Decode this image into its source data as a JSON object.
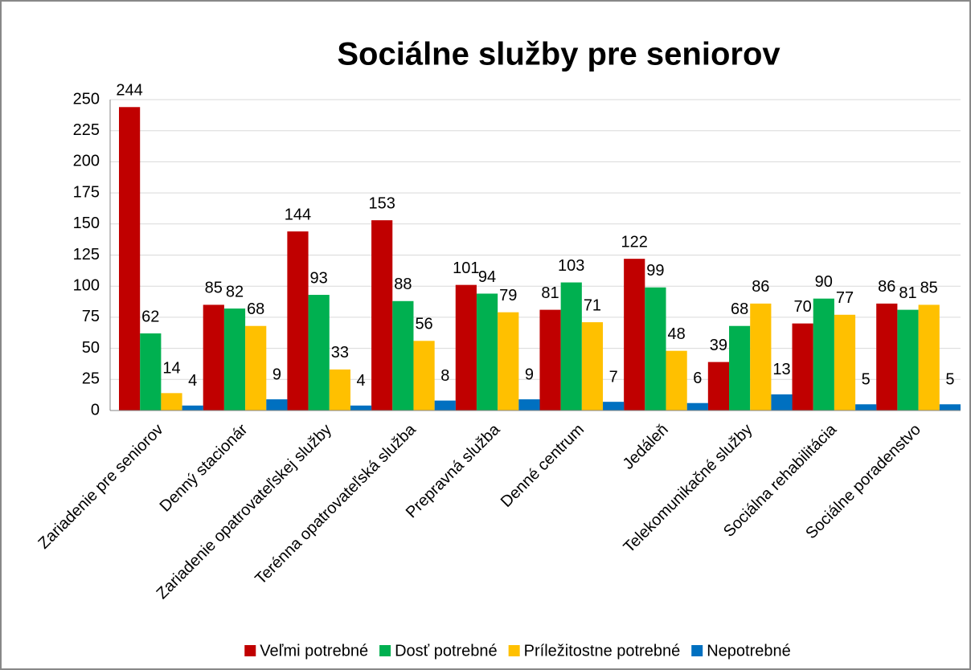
{
  "chart_data": {
    "type": "bar",
    "title": "Sociálne služby pre seniorov",
    "categories": [
      "Zariadenie pre seniorov",
      "Denný stacionár",
      "Zariadenie opatrovateľskej služby",
      "Terénna opatrovateľská služba",
      "Prepravná služba",
      "Denné centrum",
      "Jedáleň",
      "Telekomunikačné služby",
      "Sociálna rehabilitácia",
      "Sociálne poradenstvo"
    ],
    "series": [
      {
        "name": "Veľmi potrebné",
        "color": "#c00000",
        "values": [
          244,
          85,
          144,
          153,
          101,
          81,
          122,
          39,
          70,
          86
        ]
      },
      {
        "name": "Dosť potrebné",
        "color": "#00b050",
        "values": [
          62,
          82,
          93,
          88,
          94,
          103,
          99,
          68,
          90,
          81
        ]
      },
      {
        "name": "Príležitostne potrebné",
        "color": "#ffc000",
        "values": [
          14,
          68,
          33,
          56,
          79,
          71,
          48,
          86,
          77,
          85
        ]
      },
      {
        "name": "Nepotrebné",
        "color": "#0070c0",
        "values": [
          4,
          9,
          4,
          8,
          9,
          7,
          6,
          13,
          5,
          5
        ]
      }
    ],
    "ylim": [
      0,
      250
    ],
    "yticks": [
      0,
      25,
      50,
      75,
      100,
      125,
      150,
      175,
      200,
      225,
      250
    ],
    "grid": true,
    "legend": "bottom"
  }
}
